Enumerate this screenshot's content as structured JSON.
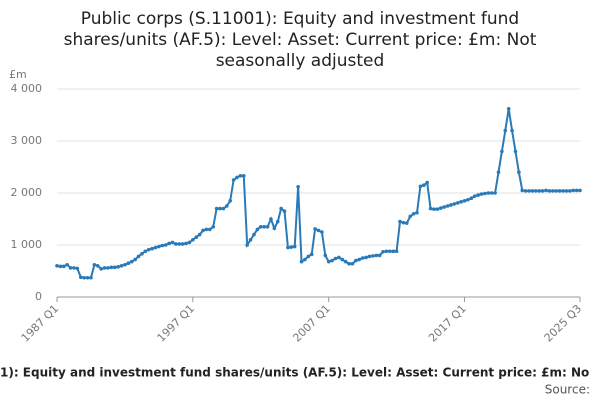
{
  "chart_data": {
    "type": "line",
    "title": [
      "Public corps (S.11001): Equity and investment fund",
      "shares/units (AF.5): Level: Asset: Current price: £m: Not",
      "seasonally adjusted"
    ],
    "y_label": "£m",
    "footer": "1): Equity and investment fund shares/units (AF.5): Level: Asset: Current price: £m: No",
    "source": "Source:",
    "categories": [
      "1987 Q1",
      null,
      null,
      null,
      null,
      null,
      null,
      null,
      null,
      null,
      null,
      null,
      null,
      null,
      null,
      null,
      null,
      null,
      null,
      null,
      null,
      null,
      null,
      null,
      null,
      null,
      null,
      null,
      null,
      null,
      null,
      null,
      null,
      null,
      null,
      null,
      null,
      null,
      null,
      null,
      "1997 Q1",
      null,
      null,
      null,
      null,
      null,
      null,
      null,
      null,
      null,
      null,
      null,
      null,
      null,
      null,
      null,
      null,
      null,
      null,
      null,
      null,
      null,
      null,
      null,
      null,
      null,
      null,
      null,
      null,
      null,
      null,
      null,
      null,
      null,
      null,
      null,
      null,
      null,
      null,
      null,
      "2007 Q1",
      null,
      null,
      null,
      null,
      null,
      null,
      null,
      null,
      null,
      null,
      null,
      null,
      null,
      null,
      null,
      null,
      null,
      null,
      null,
      null,
      null,
      null,
      null,
      null,
      null,
      null,
      null,
      null,
      null,
      null,
      null,
      null,
      null,
      null,
      null,
      null,
      null,
      null,
      null,
      "2017 Q1",
      null,
      null,
      null,
      null,
      null,
      null,
      null,
      null,
      null,
      null,
      null,
      null,
      null,
      null,
      null,
      null,
      null,
      null,
      null,
      null,
      null,
      null,
      null,
      null,
      null,
      null,
      null,
      null,
      null,
      null,
      null,
      null,
      null,
      "2025 Q3"
    ],
    "series": [
      {
        "name": "Public corps",
        "color": "#2a7ab8",
        "values": [
          600,
          590,
          590,
          620,
          560,
          560,
          550,
          380,
          370,
          370,
          370,
          620,
          600,
          540,
          560,
          560,
          570,
          570,
          580,
          600,
          620,
          650,
          680,
          720,
          780,
          830,
          880,
          910,
          930,
          950,
          970,
          990,
          1000,
          1030,
          1050,
          1020,
          1020,
          1020,
          1030,
          1050,
          1100,
          1150,
          1200,
          1280,
          1300,
          1300,
          1350,
          1700,
          1700,
          1700,
          1750,
          1850,
          2250,
          2300,
          2330,
          2330,
          1000,
          1100,
          1200,
          1300,
          1350,
          1350,
          1350,
          1500,
          1320,
          1450,
          1700,
          1650,
          950,
          960,
          970,
          2120,
          680,
          720,
          780,
          820,
          1310,
          1280,
          1250,
          800,
          680,
          700,
          740,
          760,
          720,
          680,
          640,
          640,
          700,
          720,
          750,
          760,
          780,
          790,
          800,
          800,
          870,
          880,
          880,
          880,
          880,
          1450,
          1430,
          1420,
          1550,
          1600,
          1620,
          2130,
          2150,
          2200,
          1700,
          1690,
          1690,
          1710,
          1730,
          1750,
          1770,
          1790,
          1810,
          1830,
          1850,
          1870,
          1900,
          1940,
          1960,
          1980,
          1990,
          2000,
          2000,
          2000,
          2400,
          2800,
          3200,
          3620,
          3200,
          2800,
          2400,
          2050,
          2040,
          2040,
          2040,
          2040,
          2040,
          2040,
          2050,
          2040,
          2040,
          2040,
          2040,
          2040,
          2040,
          2040,
          2050,
          2050,
          2050
        ]
      }
    ],
    "ylim": [
      0,
      4000
    ],
    "yticks": [
      0,
      {
        "value": 1000,
        "label": "1 000"
      },
      {
        "value": 2000,
        "label": "2 000"
      },
      {
        "value": 3000,
        "label": "3 000"
      },
      {
        "value": 4000,
        "label": "4 000"
      }
    ],
    "grid": true
  }
}
